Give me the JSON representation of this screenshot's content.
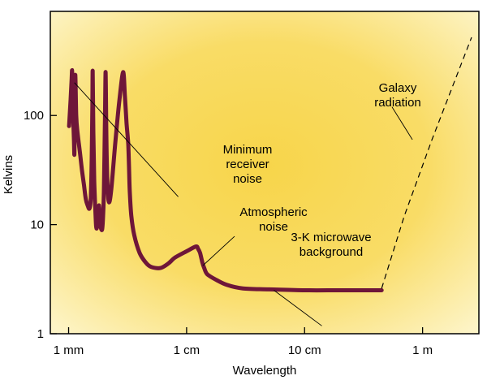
{
  "chart_data": {
    "type": "line",
    "title": "",
    "xlabel": "Wavelength",
    "ylabel": "Kelvins",
    "x_scale": "log",
    "y_scale": "log",
    "xlim_m": [
      0.0007,
      3.0
    ],
    "ylim_K": [
      1,
      900
    ],
    "grid": false,
    "colors": {
      "plot_bg_center": "#f7d54a",
      "plot_bg_edge": "#fdf3c2",
      "curve": "#6e1639",
      "frame": "#000000"
    },
    "x_ticks": [
      {
        "label": "1 mm",
        "value_m": 0.001
      },
      {
        "label": "1 cm",
        "value_m": 0.01
      },
      {
        "label": "10 cm",
        "value_m": 0.1
      },
      {
        "label": "1 m",
        "value_m": 1.0
      }
    ],
    "y_ticks": [
      {
        "label": "1",
        "value_K": 1
      },
      {
        "label": "10",
        "value_K": 10
      },
      {
        "label": "100",
        "value_K": 100
      }
    ],
    "series": [
      {
        "style": "thick-solid",
        "x": [
          0.00101,
          0.00104,
          0.00106,
          0.00107,
          0.00108,
          0.00109,
          0.00111,
          0.00112,
          0.00113,
          0.00114,
          0.00116,
          0.00119,
          0.00125,
          0.0013,
          0.00135,
          0.0014,
          0.00145,
          0.0015,
          0.00154,
          0.00157,
          0.00159,
          0.0016,
          0.00162,
          0.00165,
          0.0017,
          0.00172,
          0.00174,
          0.00177,
          0.00181,
          0.00186,
          0.0019,
          0.00193,
          0.00196,
          0.00199,
          0.00203,
          0.00206,
          0.00209,
          0.00214,
          0.0022,
          0.0023,
          0.0025,
          0.0027,
          0.0029,
          0.003,
          0.0031,
          0.0032,
          0.00325,
          0.0033,
          0.0034,
          0.0036,
          0.004,
          0.0045,
          0.005,
          0.006,
          0.007,
          0.008,
          0.01,
          0.012,
          0.0125,
          0.013,
          0.0136,
          0.0141,
          0.015,
          0.018,
          0.022,
          0.03,
          0.05,
          0.1,
          0.2,
          0.45
        ],
        "y": [
          80,
          140,
          210,
          260,
          200,
          110,
          60,
          45,
          130,
          235,
          100,
          70,
          45,
          31,
          23,
          17,
          15,
          14,
          17,
          40,
          120,
          255,
          70,
          25,
          11,
          9.3,
          9.5,
          11,
          15,
          10,
          9,
          9.2,
          12,
          20,
          80,
          250,
          60,
          22,
          16,
          21,
          60,
          140,
          250,
          150,
          85,
          55,
          35,
          20,
          12,
          8,
          5.5,
          4.5,
          4.1,
          4,
          4.4,
          5,
          5.7,
          6.3,
          6,
          5.5,
          4.5,
          4,
          3.5,
          3.1,
          2.8,
          2.6,
          2.55,
          2.5,
          2.5,
          2.5
        ]
      },
      {
        "name": "Galaxy radiation",
        "style": "dashed",
        "x": [
          0.45,
          0.7,
          1.2,
          2.0,
          2.6
        ],
        "y": [
          2.6,
          12,
          60,
          250,
          520
        ]
      }
    ],
    "annotations": [
      {
        "lines": [
          "Galaxy",
          "radiation"
        ],
        "leader_from": [
          0.55,
          120
        ],
        "leader_to": [
          0.82,
          60
        ]
      },
      {
        "lines": [
          "Minimum",
          "receiver",
          "noise"
        ],
        "leader_from": [
          0.00112,
          200
        ],
        "leader_to": [
          0.0085,
          18
        ]
      },
      {
        "lines": [
          "Atmospheric",
          "noise"
        ],
        "leader_from": [
          0.0255,
          7.8
        ],
        "leader_to": [
          0.0137,
          4.2
        ]
      },
      {
        "lines": [
          "3-K microwave",
          "background"
        ],
        "leader_from": [
          0.055,
          2.5
        ],
        "leader_to": [
          0.14,
          1.18
        ]
      }
    ]
  }
}
